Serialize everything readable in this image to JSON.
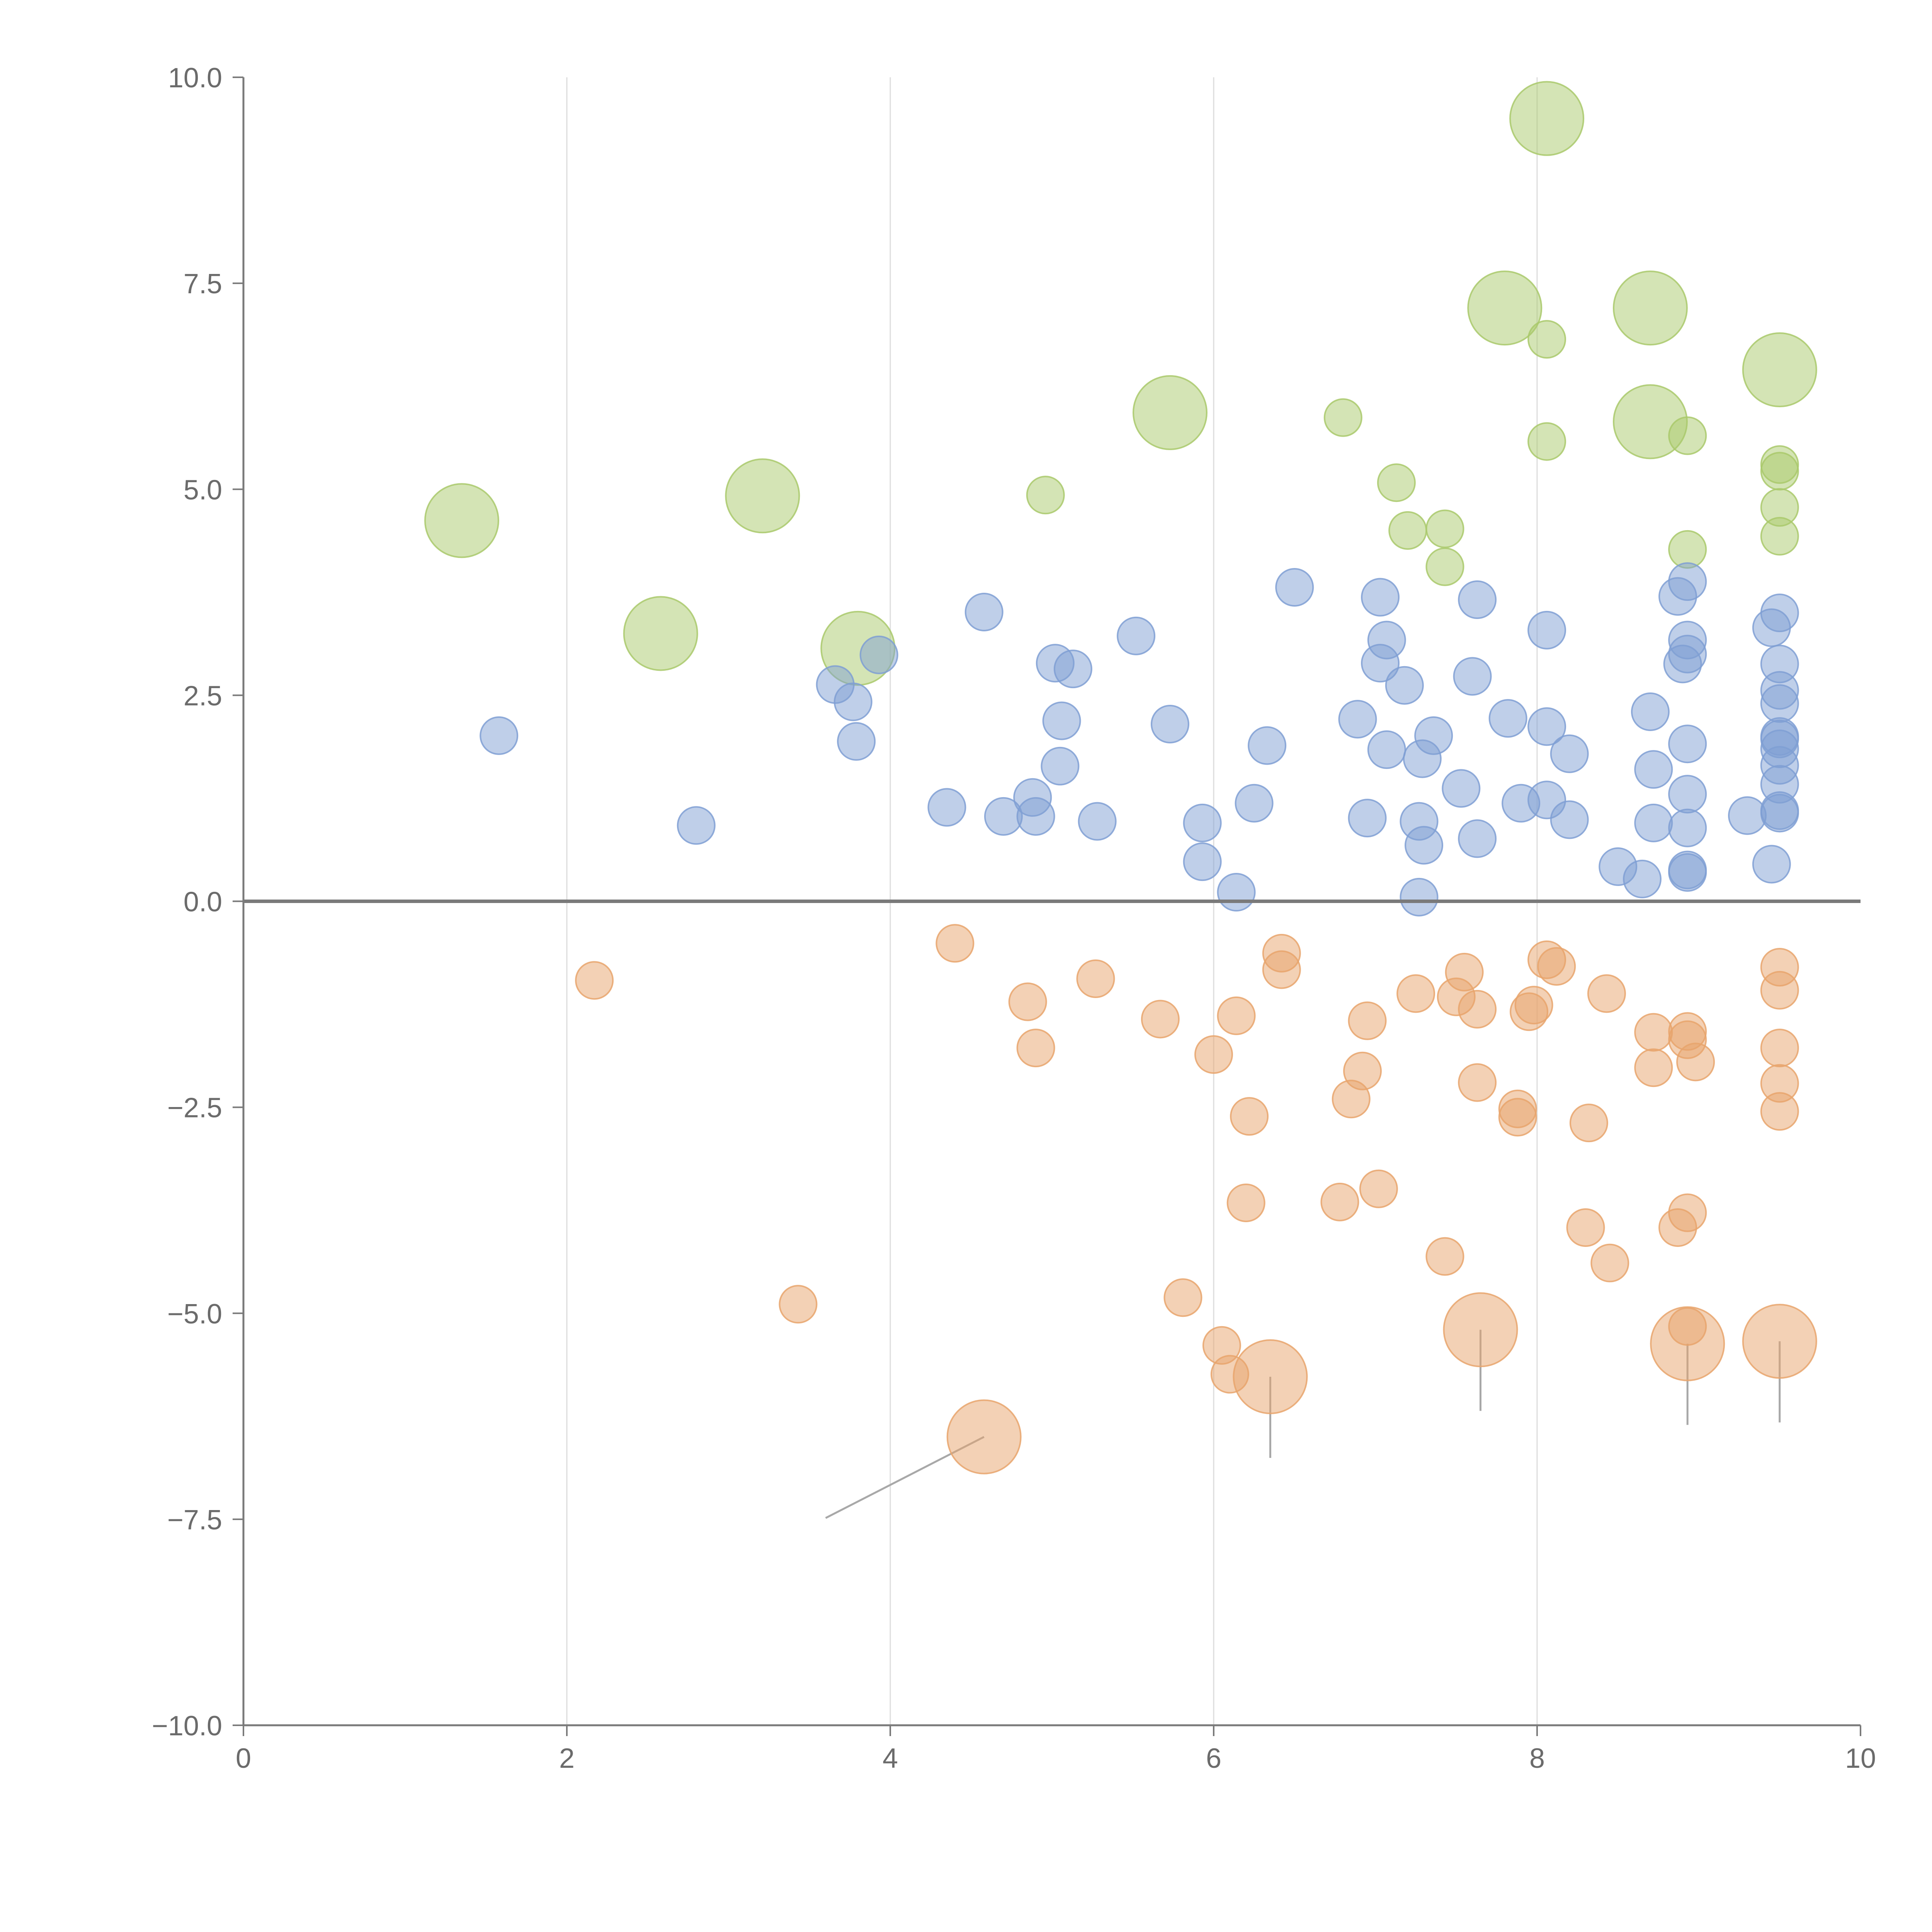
{
  "chart_data": {
    "type": "scatter",
    "title": "",
    "xlabel": "",
    "ylabel": "",
    "xlim": [
      0,
      10
    ],
    "ylim": [
      -10,
      10
    ],
    "grid": {
      "x": true,
      "y": false
    },
    "x_ticks": [
      "0",
      "2",
      "4",
      "6",
      "8",
      "10"
    ],
    "y_ticks": [
      "10.0",
      "7.5",
      "5.0",
      "2.5",
      "0.0",
      "−2.5",
      "−5.0",
      "−7.5",
      "−10.0"
    ],
    "x_tick_values": [
      0,
      2,
      4,
      6,
      8,
      10
    ],
    "y_tick_values": [
      10,
      7.5,
      5,
      2.5,
      0,
      -2.5,
      -5,
      -7.5,
      -10
    ],
    "zero_line": 0,
    "series": [
      {
        "name": "green",
        "color": "#a9c96b",
        "points": [
          {
            "x": 8.06,
            "y": 9.5,
            "size": "large"
          },
          {
            "x": 7.8,
            "y": 7.2,
            "size": "large"
          },
          {
            "x": 8.7,
            "y": 7.2,
            "size": "large"
          },
          {
            "x": 8.06,
            "y": 6.82,
            "size": "small"
          },
          {
            "x": 9.5,
            "y": 6.45,
            "size": "large"
          },
          {
            "x": 5.73,
            "y": 5.93,
            "size": "large"
          },
          {
            "x": 6.8,
            "y": 5.87,
            "size": "small"
          },
          {
            "x": 8.7,
            "y": 5.82,
            "size": "large"
          },
          {
            "x": 8.06,
            "y": 5.58,
            "size": "small"
          },
          {
            "x": 8.93,
            "y": 5.65,
            "size": "small"
          },
          {
            "x": 9.5,
            "y": 5.3,
            "size": "small"
          },
          {
            "x": 9.5,
            "y": 5.22,
            "size": "small"
          },
          {
            "x": 7.13,
            "y": 5.08,
            "size": "small"
          },
          {
            "x": 4.96,
            "y": 4.93,
            "size": "small"
          },
          {
            "x": 3.21,
            "y": 4.92,
            "size": "large"
          },
          {
            "x": 1.35,
            "y": 4.62,
            "size": "large"
          },
          {
            "x": 9.5,
            "y": 4.78,
            "size": "small"
          },
          {
            "x": 7.2,
            "y": 4.5,
            "size": "small"
          },
          {
            "x": 7.43,
            "y": 4.52,
            "size": "small"
          },
          {
            "x": 9.5,
            "y": 4.43,
            "size": "small"
          },
          {
            "x": 8.93,
            "y": 4.27,
            "size": "small"
          },
          {
            "x": 7.43,
            "y": 4.06,
            "size": "small"
          },
          {
            "x": 2.58,
            "y": 3.25,
            "size": "large"
          },
          {
            "x": 3.8,
            "y": 3.07,
            "size": "large"
          }
        ]
      },
      {
        "name": "blue",
        "color": "#7f9fd4",
        "points": [
          {
            "x": 6.5,
            "y": 3.81
          },
          {
            "x": 7.03,
            "y": 3.69
          },
          {
            "x": 7.63,
            "y": 3.66
          },
          {
            "x": 8.93,
            "y": 3.88
          },
          {
            "x": 8.87,
            "y": 3.7
          },
          {
            "x": 4.58,
            "y": 3.51
          },
          {
            "x": 9.5,
            "y": 3.5
          },
          {
            "x": 9.45,
            "y": 3.32
          },
          {
            "x": 8.06,
            "y": 3.29
          },
          {
            "x": 5.52,
            "y": 3.22
          },
          {
            "x": 7.07,
            "y": 3.17
          },
          {
            "x": 8.93,
            "y": 3.17
          },
          {
            "x": 3.93,
            "y": 2.99
          },
          {
            "x": 8.93,
            "y": 3.0
          },
          {
            "x": 5.02,
            "y": 2.89
          },
          {
            "x": 7.03,
            "y": 2.89
          },
          {
            "x": 5.13,
            "y": 2.82
          },
          {
            "x": 9.5,
            "y": 2.88
          },
          {
            "x": 8.9,
            "y": 2.88
          },
          {
            "x": 7.6,
            "y": 2.73
          },
          {
            "x": 3.66,
            "y": 2.63
          },
          {
            "x": 7.18,
            "y": 2.62
          },
          {
            "x": 9.5,
            "y": 2.56
          },
          {
            "x": 3.77,
            "y": 2.42
          },
          {
            "x": 9.5,
            "y": 2.4
          },
          {
            "x": 8.7,
            "y": 2.3
          },
          {
            "x": 7.82,
            "y": 2.22
          },
          {
            "x": 6.89,
            "y": 2.21
          },
          {
            "x": 5.06,
            "y": 2.19
          },
          {
            "x": 5.73,
            "y": 2.15
          },
          {
            "x": 8.06,
            "y": 2.12
          },
          {
            "x": 1.58,
            "y": 2.01
          },
          {
            "x": 7.36,
            "y": 2.01
          },
          {
            "x": 9.5,
            "y": 2.0
          },
          {
            "x": 9.5,
            "y": 1.97
          },
          {
            "x": 3.79,
            "y": 1.94
          },
          {
            "x": 8.93,
            "y": 1.91
          },
          {
            "x": 6.33,
            "y": 1.89
          },
          {
            "x": 7.07,
            "y": 1.84
          },
          {
            "x": 9.5,
            "y": 1.85
          },
          {
            "x": 8.2,
            "y": 1.79
          },
          {
            "x": 7.29,
            "y": 1.73
          },
          {
            "x": 5.05,
            "y": 1.64
          },
          {
            "x": 9.5,
            "y": 1.65
          },
          {
            "x": 8.72,
            "y": 1.6
          },
          {
            "x": 9.5,
            "y": 1.42
          },
          {
            "x": 7.53,
            "y": 1.37
          },
          {
            "x": 8.93,
            "y": 1.3
          },
          {
            "x": 4.88,
            "y": 1.26
          },
          {
            "x": 8.06,
            "y": 1.23
          },
          {
            "x": 6.25,
            "y": 1.19
          },
          {
            "x": 7.9,
            "y": 1.19
          },
          {
            "x": 4.35,
            "y": 1.14
          },
          {
            "x": 9.5,
            "y": 1.1
          },
          {
            "x": 9.3,
            "y": 1.04
          },
          {
            "x": 9.5,
            "y": 1.07
          },
          {
            "x": 4.7,
            "y": 1.03
          },
          {
            "x": 4.9,
            "y": 1.03
          },
          {
            "x": 6.95,
            "y": 1.01
          },
          {
            "x": 8.2,
            "y": 0.99
          },
          {
            "x": 5.28,
            "y": 0.97
          },
          {
            "x": 7.27,
            "y": 0.97
          },
          {
            "x": 8.72,
            "y": 0.95
          },
          {
            "x": 5.93,
            "y": 0.95
          },
          {
            "x": 2.8,
            "y": 0.92
          },
          {
            "x": 8.93,
            "y": 0.89
          },
          {
            "x": 7.63,
            "y": 0.76
          },
          {
            "x": 7.3,
            "y": 0.68
          },
          {
            "x": 5.93,
            "y": 0.48
          },
          {
            "x": 9.45,
            "y": 0.45
          },
          {
            "x": 8.5,
            "y": 0.42
          },
          {
            "x": 8.93,
            "y": 0.38
          },
          {
            "x": 8.93,
            "y": 0.35
          },
          {
            "x": 8.65,
            "y": 0.27
          },
          {
            "x": 6.14,
            "y": 0.11
          },
          {
            "x": 7.27,
            "y": 0.05
          }
        ]
      },
      {
        "name": "orange",
        "color": "#e8a46c",
        "points": [
          {
            "x": 6.42,
            "y": -0.63,
            "size": "small"
          },
          {
            "x": 8.06,
            "y": -0.71,
            "size": "small"
          },
          {
            "x": 4.4,
            "y": -0.51,
            "size": "small"
          },
          {
            "x": 9.5,
            "y": -0.8,
            "size": "small"
          },
          {
            "x": 6.42,
            "y": -0.83,
            "size": "small"
          },
          {
            "x": 8.12,
            "y": -0.79,
            "size": "small"
          },
          {
            "x": 7.55,
            "y": -0.86,
            "size": "small"
          },
          {
            "x": 2.17,
            "y": -0.96,
            "size": "small"
          },
          {
            "x": 5.27,
            "y": -0.94,
            "size": "small"
          },
          {
            "x": 8.43,
            "y": -1.12,
            "size": "small"
          },
          {
            "x": 7.25,
            "y": -1.12,
            "size": "small"
          },
          {
            "x": 7.5,
            "y": -1.16,
            "size": "small"
          },
          {
            "x": 9.5,
            "y": -1.08,
            "size": "small"
          },
          {
            "x": 4.85,
            "y": -1.22,
            "size": "small"
          },
          {
            "x": 7.98,
            "y": -1.26,
            "size": "small"
          },
          {
            "x": 7.63,
            "y": -1.31,
            "size": "small"
          },
          {
            "x": 7.95,
            "y": -1.34,
            "size": "small"
          },
          {
            "x": 6.14,
            "y": -1.39,
            "size": "small"
          },
          {
            "x": 5.67,
            "y": -1.43,
            "size": "small"
          },
          {
            "x": 6.95,
            "y": -1.45,
            "size": "small"
          },
          {
            "x": 8.72,
            "y": -1.59,
            "size": "small"
          },
          {
            "x": 8.93,
            "y": -1.58,
            "size": "small"
          },
          {
            "x": 8.93,
            "y": -1.68,
            "size": "small"
          },
          {
            "x": 4.9,
            "y": -1.78,
            "size": "small"
          },
          {
            "x": 9.5,
            "y": -1.78,
            "size": "small"
          },
          {
            "x": 6.0,
            "y": -1.86,
            "size": "small"
          },
          {
            "x": 8.98,
            "y": -1.95,
            "size": "small"
          },
          {
            "x": 8.72,
            "y": -2.02,
            "size": "small"
          },
          {
            "x": 6.92,
            "y": -2.06,
            "size": "small"
          },
          {
            "x": 7.63,
            "y": -2.2,
            "size": "small"
          },
          {
            "x": 9.5,
            "y": -2.21,
            "size": "small"
          },
          {
            "x": 6.85,
            "y": -2.4,
            "size": "small"
          },
          {
            "x": 7.88,
            "y": -2.52,
            "size": "small"
          },
          {
            "x": 9.5,
            "y": -2.55,
            "size": "small"
          },
          {
            "x": 6.22,
            "y": -2.61,
            "size": "small"
          },
          {
            "x": 7.88,
            "y": -2.62,
            "size": "small"
          },
          {
            "x": 8.32,
            "y": -2.69,
            "size": "small"
          },
          {
            "x": 7.02,
            "y": -3.49,
            "size": "small"
          },
          {
            "x": 6.2,
            "y": -3.66,
            "size": "small"
          },
          {
            "x": 6.78,
            "y": -3.65,
            "size": "small"
          },
          {
            "x": 8.93,
            "y": -3.78,
            "size": "small"
          },
          {
            "x": 8.3,
            "y": -3.96,
            "size": "small"
          },
          {
            "x": 8.87,
            "y": -3.96,
            "size": "small"
          },
          {
            "x": 7.43,
            "y": -4.31,
            "size": "small"
          },
          {
            "x": 8.45,
            "y": -4.39,
            "size": "small"
          },
          {
            "x": 5.81,
            "y": -4.81,
            "size": "small"
          },
          {
            "x": 3.43,
            "y": -4.89,
            "size": "small"
          },
          {
            "x": 8.93,
            "y": -5.16,
            "size": "small"
          },
          {
            "x": 6.05,
            "y": -5.39,
            "size": "small"
          },
          {
            "x": 6.1,
            "y": -5.74,
            "size": "small"
          },
          {
            "x": 7.65,
            "y": -5.2,
            "size": "large"
          },
          {
            "x": 8.93,
            "y": -5.37,
            "size": "large"
          },
          {
            "x": 9.5,
            "y": -5.34,
            "size": "large"
          },
          {
            "x": 6.35,
            "y": -5.77,
            "size": "large"
          },
          {
            "x": 4.58,
            "y": -6.5,
            "size": "large"
          }
        ]
      }
    ]
  }
}
